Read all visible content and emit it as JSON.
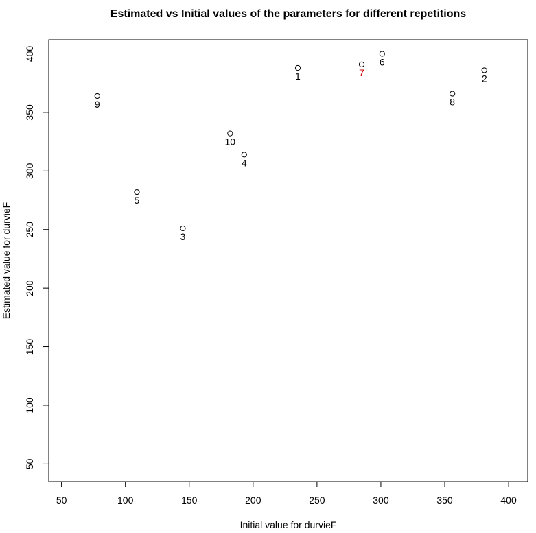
{
  "chart_data": {
    "type": "scatter",
    "title": "Estimated vs Initial values of the parameters for different repetitions",
    "xlabel": "Initial value for durvieF",
    "ylabel": "Estimated value for durvieF",
    "xlim": [
      40,
      415
    ],
    "ylim": [
      35,
      412
    ],
    "x_ticks": [
      50,
      100,
      150,
      200,
      250,
      300,
      350,
      400
    ],
    "y_ticks": [
      50,
      100,
      150,
      200,
      250,
      300,
      350,
      400
    ],
    "grid": false,
    "points": [
      {
        "label": "1",
        "x": 235,
        "y": 388,
        "color": "#000000"
      },
      {
        "label": "2",
        "x": 381,
        "y": 386,
        "color": "#000000"
      },
      {
        "label": "3",
        "x": 145,
        "y": 251,
        "color": "#000000"
      },
      {
        "label": "4",
        "x": 193,
        "y": 314,
        "color": "#000000"
      },
      {
        "label": "5",
        "x": 109,
        "y": 282,
        "color": "#000000"
      },
      {
        "label": "6",
        "x": 301,
        "y": 400,
        "color": "#000000"
      },
      {
        "label": "7",
        "x": 285,
        "y": 391,
        "color": "#cc0000"
      },
      {
        "label": "8",
        "x": 356,
        "y": 366,
        "color": "#000000"
      },
      {
        "label": "9",
        "x": 78,
        "y": 364,
        "color": "#000000"
      },
      {
        "label": "10",
        "x": 182,
        "y": 332,
        "color": "#000000"
      }
    ]
  }
}
